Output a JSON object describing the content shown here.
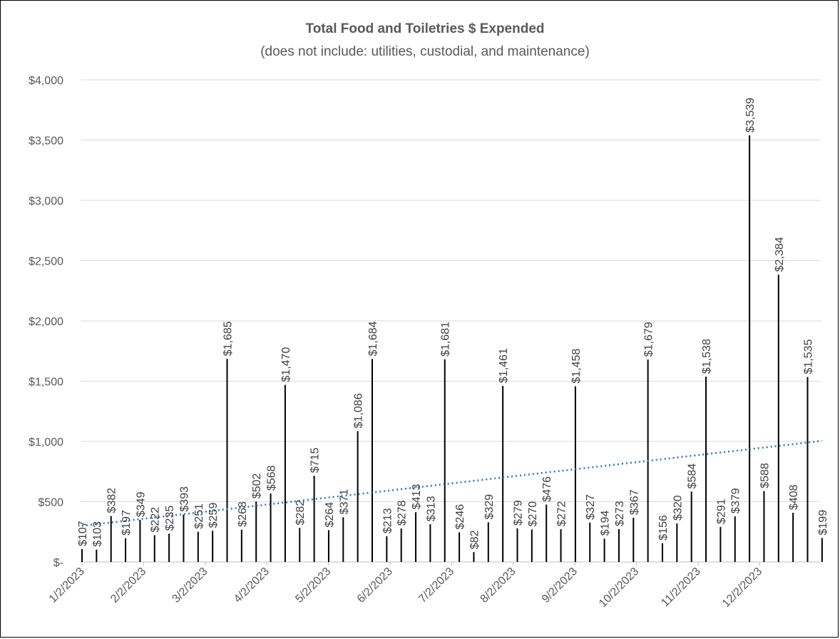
{
  "chart_data": {
    "type": "bar",
    "title": "Total Food and Toiletries $ Expended",
    "subtitle": "(does not include: utilities, custodial, and maintenance)",
    "xlabel": "",
    "ylabel": "",
    "ylim": [
      0,
      4000
    ],
    "y_ticks": [
      0,
      500,
      1000,
      1500,
      2000,
      2500,
      3000,
      3500,
      4000
    ],
    "y_tick_labels": [
      "$-",
      "$500",
      "$1,000",
      "$1,500",
      "$2,000",
      "$2,500",
      "$3,000",
      "$3,500",
      "$4,000"
    ],
    "x_tick_labels": [
      "1/2/2023",
      "2/2/2023",
      "3/2/2023",
      "4/2/2023",
      "5/2/2023",
      "6/2/2023",
      "7/2/2023",
      "8/2/2023",
      "9/2/2023",
      "10/2/2023",
      "11/2/2023",
      "12/2/2023"
    ],
    "grid": true,
    "legend": "none",
    "values": [
      107,
      103,
      382,
      197,
      349,
      222,
      235,
      393,
      251,
      259,
      1685,
      268,
      502,
      568,
      1470,
      282,
      715,
      264,
      371,
      1086,
      1684,
      213,
      278,
      413,
      313,
      1681,
      246,
      82,
      329,
      1461,
      279,
      270,
      476,
      272,
      1458,
      327,
      194,
      273,
      367,
      1679,
      156,
      320,
      584,
      1538,
      291,
      379,
      3539,
      588,
      2384,
      408,
      1535,
      199
    ],
    "labels": [
      "$107",
      "$103",
      "$382",
      "$197",
      "$349",
      "$222",
      "$235",
      "$393",
      "$251",
      "$259",
      "$1,685",
      "$268",
      "$502",
      "$568",
      "$1,470",
      "$282",
      "$715",
      "$264",
      "$371",
      "$1,086",
      "$1,684",
      "$213",
      "$278",
      "$413",
      "$313",
      "$1,681",
      "$246",
      "$82",
      "$329",
      "$1,461",
      "$279",
      "$270",
      "$476",
      "$272",
      "$1,458",
      "$327",
      "$194",
      "$273",
      "$367",
      "$1,679",
      "$156",
      "$320",
      "$584",
      "$1,538",
      "$291",
      "$379",
      "$3,539",
      "$588",
      "$2,384",
      "$408",
      "$1,535",
      "$199"
    ],
    "trendline": {
      "type": "linear",
      "start": 300,
      "end": 1005
    },
    "colors": {
      "bar": "#000000",
      "trend": "#2e75b6",
      "grid": "#d9d9d9",
      "text": "#595959"
    }
  }
}
